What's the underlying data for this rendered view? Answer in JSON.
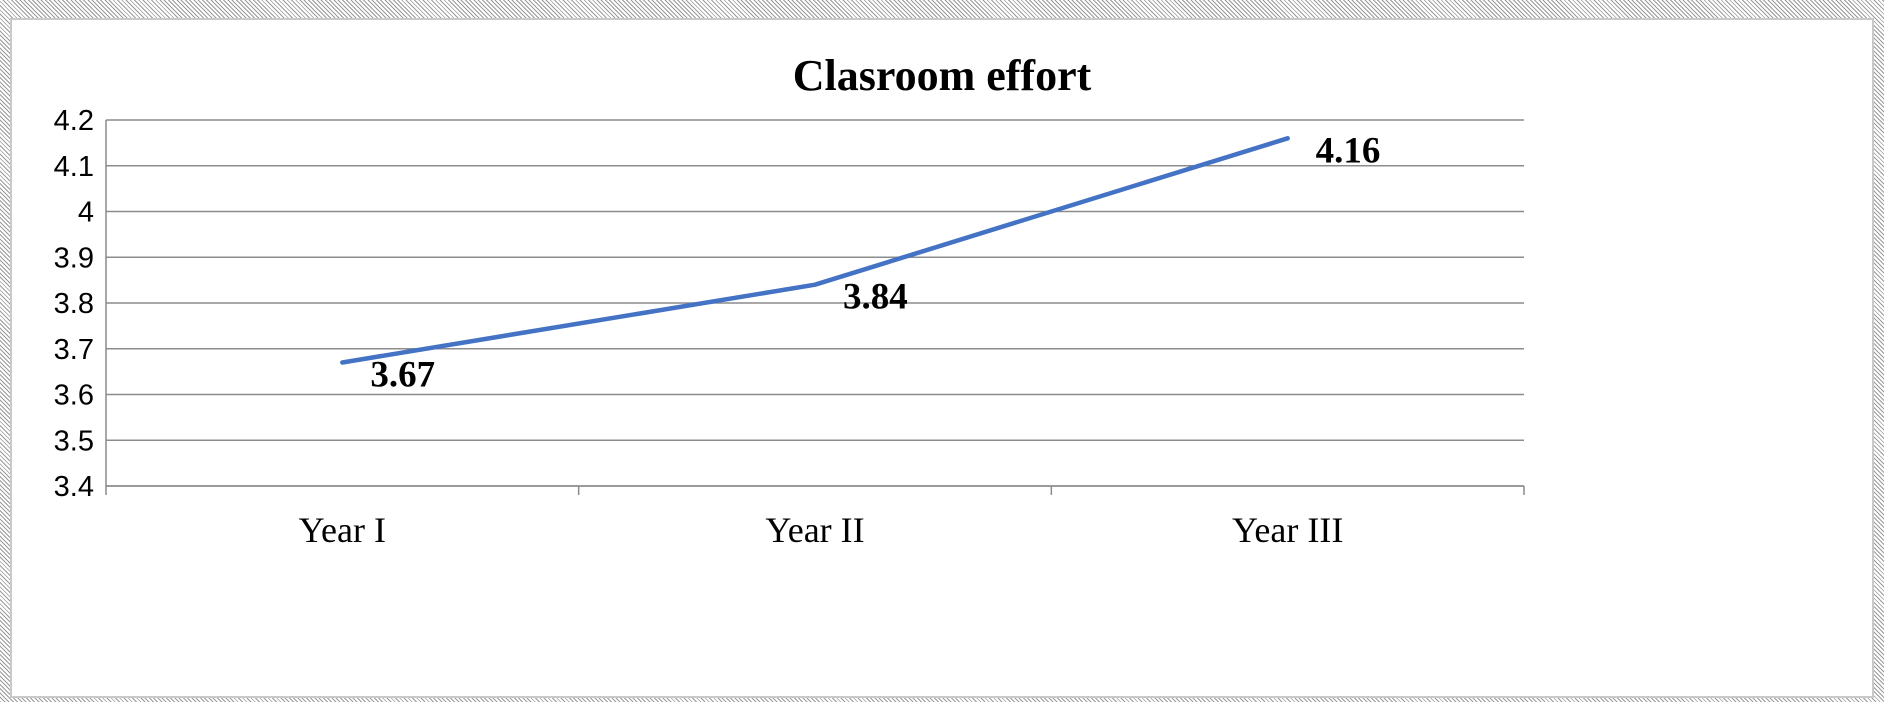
{
  "chart_data": {
    "type": "line",
    "title": "Clasroom effort",
    "xlabel": "",
    "ylabel": "",
    "categories": [
      "Year I",
      "Year II",
      "Year III"
    ],
    "series": [
      {
        "values": [
          3.67,
          3.84,
          4.16
        ],
        "color": "#4472c4"
      }
    ],
    "data_labels": [
      "3.67",
      "3.84",
      "4.16"
    ],
    "ylim": [
      3.4,
      4.2
    ],
    "yticks": [
      3.4,
      3.5,
      3.6,
      3.7,
      3.8,
      3.9,
      4,
      4.1,
      4.2
    ],
    "ytick_labels": [
      "3.4",
      "3.5",
      "3.6",
      "3.7",
      "3.8",
      "3.9",
      "4",
      "4.1",
      "4.2"
    ],
    "grid": true,
    "legend": "none"
  }
}
